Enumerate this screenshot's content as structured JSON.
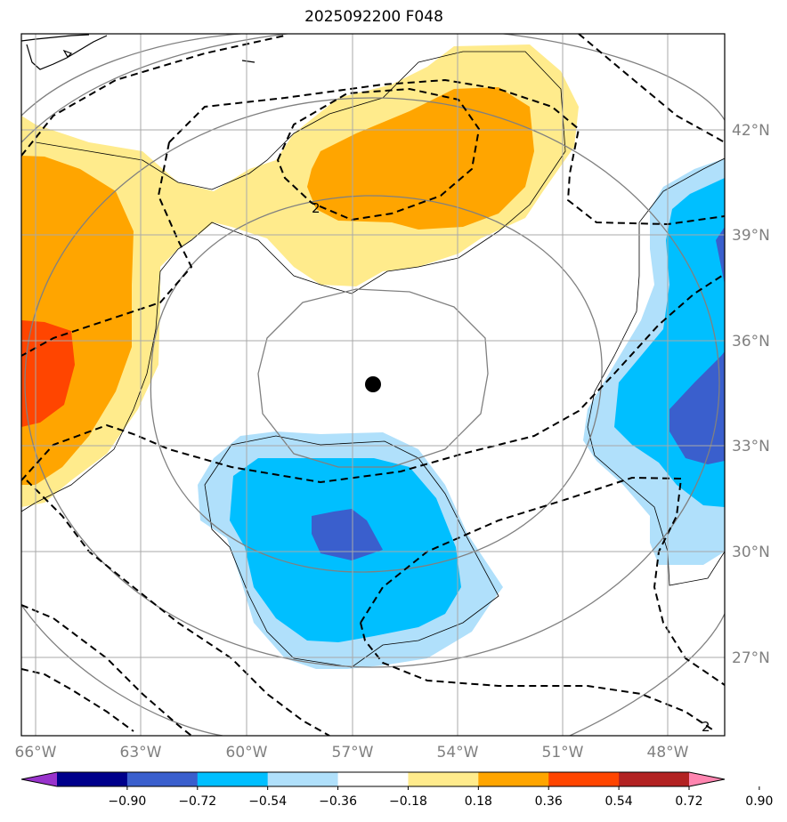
{
  "title": "2025092200 F048",
  "chart_data": {
    "type": "map-contour",
    "title": "2025092200 F048",
    "latitude_labels": [
      "42°N",
      "39°N",
      "36°N",
      "33°N",
      "30°N",
      "27°N"
    ],
    "longitude_labels": [
      "66°W",
      "63°W",
      "60°W",
      "57°W",
      "54°W",
      "51°W",
      "48°W"
    ],
    "center_marker": {
      "lon": -56.4,
      "lat": 34.2
    },
    "dashed_contour_label": "2",
    "colorbar": {
      "levels": [
        "−0.90",
        "−0.72",
        "−0.54",
        "−0.36",
        "−0.18",
        "0.18",
        "0.36",
        "0.54",
        "0.72",
        "0.90"
      ],
      "colors": [
        "#9933cc",
        "#00008b",
        "#3a5fcd",
        "#00bfff",
        "#b0e0fb",
        "#ffffff",
        "#ffeb8c",
        "#ffa500",
        "#ff4500",
        "#b22222",
        "#ff85b0"
      ]
    }
  }
}
